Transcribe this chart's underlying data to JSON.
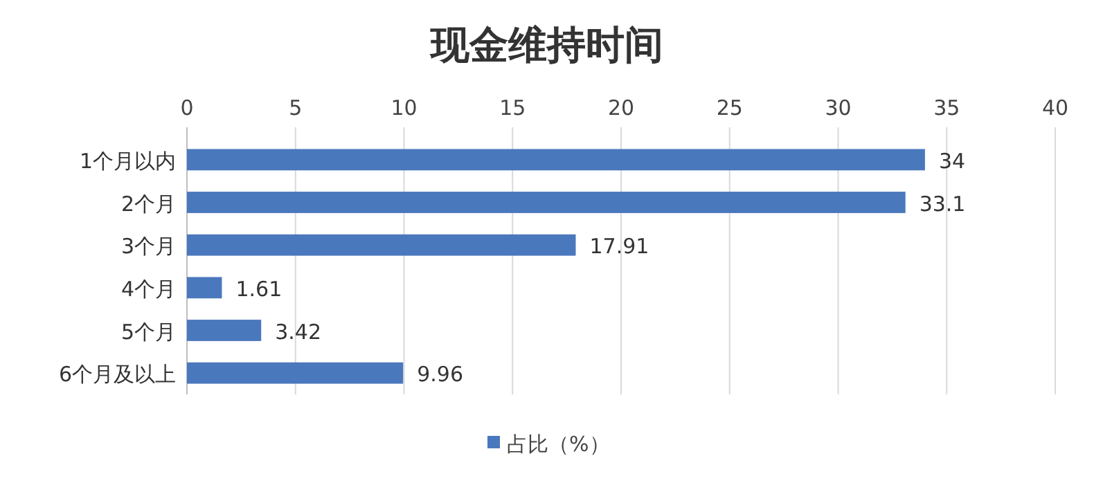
{
  "chart_data": {
    "type": "bar",
    "title": "现金维持时间",
    "orientation": "horizontal",
    "categories": [
      "1个月以内",
      "2个月",
      "3个月",
      "4个月",
      "5个月",
      "6个月及以上"
    ],
    "series": [
      {
        "name": "占比（%）",
        "color": "#4a78bd",
        "values": [
          34,
          33.1,
          17.91,
          1.61,
          3.42,
          9.96
        ]
      }
    ],
    "xlim": [
      0,
      40
    ],
    "xticks": [
      0,
      5,
      10,
      15,
      20,
      25,
      30,
      35,
      40
    ],
    "grid": "x",
    "legend": "bottom",
    "data_labels": true
  }
}
